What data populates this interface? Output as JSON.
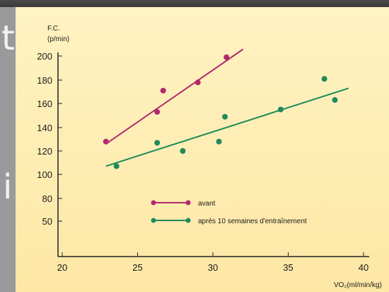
{
  "slide_fragments": [
    "ti",
    "i"
  ],
  "chart_data": {
    "type": "scatter",
    "ylabel_line1": "F.C.",
    "ylabel_line2": "(p/min)",
    "xlabel": "VO₂(ml/min/kg)",
    "x_ticks": [
      20,
      25,
      30,
      35,
      40
    ],
    "y_ticks": [
      50,
      80,
      100,
      120,
      140,
      160,
      180,
      200
    ],
    "grid": false,
    "legend_position": "center",
    "series": [
      {
        "name": "avant",
        "color": "#b22a6e",
        "points": [
          [
            22.9,
            128
          ],
          [
            26.3,
            153
          ],
          [
            26.7,
            171
          ],
          [
            29.0,
            178
          ],
          [
            30.9,
            199
          ]
        ],
        "trend": [
          [
            22.9,
            126
          ],
          [
            32.0,
            205
          ]
        ]
      },
      {
        "name": "après 10 semaines d'entraînement",
        "color": "#1f8a5a",
        "points": [
          [
            23.6,
            107
          ],
          [
            26.3,
            127
          ],
          [
            28.0,
            120
          ],
          [
            30.4,
            128
          ],
          [
            30.8,
            149
          ],
          [
            34.5,
            155
          ],
          [
            37.4,
            181
          ],
          [
            38.1,
            163
          ]
        ],
        "trend": [
          [
            22.9,
            107
          ],
          [
            39.0,
            173
          ]
        ]
      }
    ]
  }
}
